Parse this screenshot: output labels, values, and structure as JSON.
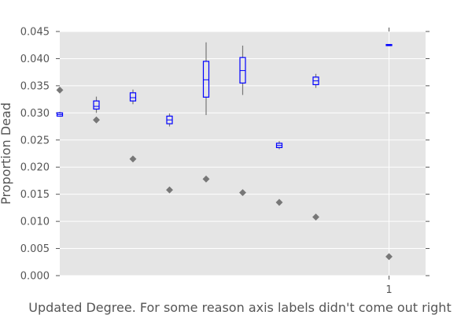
{
  "chart_data": {
    "type": "box",
    "title": "",
    "xlabel": "Updated Degree. For some reason axis labels didn't come out right",
    "ylabel": "Proportion Dead",
    "ylim": [
      0.0,
      0.045
    ],
    "yticks": [
      "0.000",
      "0.005",
      "0.010",
      "0.015",
      "0.020",
      "0.025",
      "0.030",
      "0.035",
      "0.040",
      "0.045"
    ],
    "xlim": [
      0.1,
      1.1
    ],
    "xticks": [
      {
        "value": 1,
        "label": "1"
      }
    ],
    "grid": true,
    "boxes": [
      {
        "x": 0.1,
        "whisker_low": 0.0293,
        "q1": 0.0294,
        "median": 0.0297,
        "q3": 0.03,
        "whisker_high": 0.0302
      },
      {
        "x": 0.2,
        "whisker_low": 0.03,
        "q1": 0.0307,
        "median": 0.0312,
        "q3": 0.0322,
        "whisker_high": 0.033
      },
      {
        "x": 0.3,
        "whisker_low": 0.0316,
        "q1": 0.0322,
        "median": 0.0328,
        "q3": 0.0337,
        "whisker_high": 0.0343
      },
      {
        "x": 0.4,
        "whisker_low": 0.0275,
        "q1": 0.028,
        "median": 0.0287,
        "q3": 0.0294,
        "whisker_high": 0.0299
      },
      {
        "x": 0.5,
        "whisker_low": 0.0296,
        "q1": 0.0329,
        "median": 0.0361,
        "q3": 0.0395,
        "whisker_high": 0.043
      },
      {
        "x": 0.6,
        "whisker_low": 0.0333,
        "q1": 0.0355,
        "median": 0.0378,
        "q3": 0.0402,
        "whisker_high": 0.0424
      },
      {
        "x": 0.7,
        "whisker_low": 0.0233,
        "q1": 0.0236,
        "median": 0.024,
        "q3": 0.0244,
        "whisker_high": 0.0248
      },
      {
        "x": 0.8,
        "whisker_low": 0.0346,
        "q1": 0.0352,
        "median": 0.0359,
        "q3": 0.0366,
        "whisker_high": 0.0372
      },
      {
        "x": 1.0,
        "whisker_low": 0.0423,
        "q1": 0.0424,
        "median": 0.0425,
        "q3": 0.0426,
        "whisker_high": 0.0426
      }
    ],
    "points": [
      {
        "x": 0.1,
        "y": 0.0342
      },
      {
        "x": 0.2,
        "y": 0.0287
      },
      {
        "x": 0.3,
        "y": 0.0215
      },
      {
        "x": 0.4,
        "y": 0.0158
      },
      {
        "x": 0.5,
        "y": 0.0178
      },
      {
        "x": 0.6,
        "y": 0.0153
      },
      {
        "x": 0.7,
        "y": 0.0135
      },
      {
        "x": 0.8,
        "y": 0.0108
      },
      {
        "x": 1.0,
        "y": 0.0035
      }
    ],
    "colors": {
      "background": "#e5e5e5",
      "grid": "#ffffff",
      "box": "#0000ff",
      "whisker": "#777777",
      "point": "#777777"
    }
  }
}
